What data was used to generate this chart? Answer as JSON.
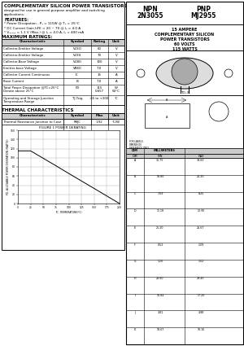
{
  "title": "COMPLEMENTARY SILICON POWER TRANSISTORS",
  "subtitle1": "designed for use in general-purpose amplifier and switching",
  "subtitle2": "applications.",
  "features_title": "FEATURES:",
  "feat1": "* Power Dissipation - P₂ = 115W @ T₆ = 25°C",
  "feat2": "* DC Current Gain hFE = 20 ~ 70 @ I₆ = 4.0 A",
  "feat3": "* V₂₂₂₂₂ = 1.1 V (Max.) @ I₆ = 4.0 A, I₂ = 400 mA",
  "max_ratings_title": "MAXIMUM RATINGS:",
  "max_headers": [
    "Characteristic",
    "Symbol",
    "Rating",
    "Unit"
  ],
  "thermal_title": "THERMAL CHARACTERISTICS",
  "thermal_headers": [
    "Characteristic",
    "Symbol",
    "Max",
    "Unit"
  ],
  "npn_label": "NPN",
  "pnp_label": "PNP",
  "npn_part": "2N3055",
  "pnp_part": "MJ2955",
  "desc1": "15 AMPERE",
  "desc2": "COMPLEMENTARY SILICON",
  "desc3": "POWER TRANSISTORS",
  "desc4": "60 VOLTS",
  "desc5": "115 WATTS",
  "package": "TO-3",
  "graph_title": "FIGURE 1 POWER DERATING",
  "graph_xlabel": "TC, TEMPERATURE(°C)",
  "graph_ylabel": "PD, ALLOWABLE POWER DISSIPATION (WATTS)",
  "graph_x": [
    0,
    25,
    75,
    100,
    125,
    150,
    175,
    200
  ],
  "graph_y": [
    115,
    115,
    82.4,
    65.7,
    49.3,
    32.9,
    16.4,
    0
  ],
  "graph_yticks": [
    0,
    20,
    40,
    60,
    80,
    100,
    120,
    140,
    160
  ],
  "graph_xticks": [
    0,
    25,
    50,
    75,
    100,
    125,
    150,
    175,
    200
  ],
  "dim_rows": [
    [
      "A",
      "36.75",
      "38.60"
    ],
    [
      "B",
      "18.80",
      "20.20"
    ],
    [
      "C",
      "7.09",
      "8.25"
    ],
    [
      "D",
      "11.18",
      "12.95"
    ],
    [
      "E",
      "25.20",
      "26.67"
    ],
    [
      "F",
      "0.52",
      "1.09"
    ],
    [
      "G",
      "1.20",
      "1.52"
    ],
    [
      "H",
      "28.60",
      "29.40"
    ],
    [
      "I",
      "16.64",
      "17.20"
    ],
    [
      "J",
      "3.81",
      "4.98"
    ],
    [
      "K",
      "10.67",
      "10.16"
    ]
  ],
  "bg": "#ffffff",
  "black": "#000000",
  "gray": "#cccccc"
}
